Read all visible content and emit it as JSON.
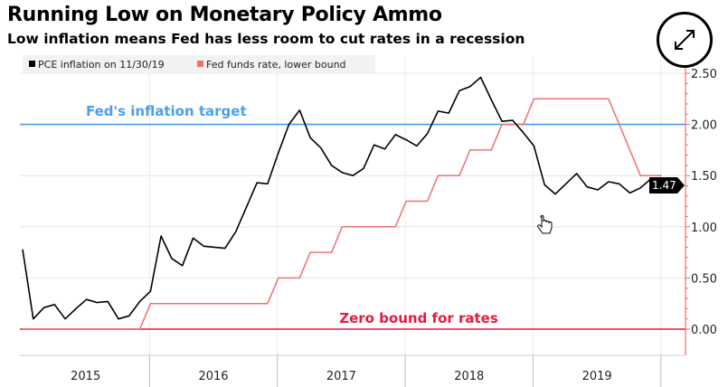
{
  "title": "Running Low on Monetary Policy Ammo",
  "subtitle": "Low inflation means Fed has less room to cut rates in a recession",
  "expand_icon": "expand-arrows-icon",
  "chart_data": {
    "type": "line",
    "title": "Running Low on Monetary Policy Ammo",
    "subtitle": "Low inflation means Fed has less room to cut rates in a recession",
    "x_tick_labels": [
      "2015",
      "2016",
      "2017",
      "2018",
      "2019"
    ],
    "y_ticks": [
      "0.00",
      "0.50",
      "1.00",
      "1.50",
      "2.00",
      "2.50"
    ],
    "ylim": [
      0,
      2.5
    ],
    "y_axis_side": "right",
    "grid": true,
    "legend_placement": "top-left",
    "series": [
      {
        "name": "PCE inflation on 11/30/19",
        "color": "#000000",
        "x": [
          "2014-12",
          "2015-01",
          "2015-02",
          "2015-03",
          "2015-04",
          "2015-05",
          "2015-06",
          "2015-07",
          "2015-08",
          "2015-09",
          "2015-10",
          "2015-11",
          "2015-12",
          "2016-01",
          "2016-02",
          "2016-03",
          "2016-04",
          "2016-05",
          "2016-06",
          "2016-07",
          "2016-08",
          "2016-09",
          "2016-10",
          "2016-11",
          "2016-12",
          "2017-01",
          "2017-02",
          "2017-03",
          "2017-04",
          "2017-05",
          "2017-06",
          "2017-07",
          "2017-08",
          "2017-09",
          "2017-10",
          "2017-11",
          "2017-12",
          "2018-01",
          "2018-02",
          "2018-03",
          "2018-04",
          "2018-05",
          "2018-06",
          "2018-07",
          "2018-08",
          "2018-09",
          "2018-10",
          "2018-11",
          "2018-12",
          "2019-01",
          "2019-02",
          "2019-03",
          "2019-04",
          "2019-05",
          "2019-06",
          "2019-07",
          "2019-08",
          "2019-09",
          "2019-10",
          "2019-11"
        ],
        "values": [
          0.78,
          0.1,
          0.21,
          0.24,
          0.1,
          0.2,
          0.29,
          0.26,
          0.27,
          0.1,
          0.13,
          0.27,
          0.37,
          0.91,
          0.69,
          0.62,
          0.89,
          0.81,
          0.8,
          0.79,
          0.95,
          1.19,
          1.43,
          1.42,
          1.72,
          2.0,
          2.14,
          1.87,
          1.77,
          1.6,
          1.53,
          1.5,
          1.57,
          1.8,
          1.76,
          1.9,
          1.85,
          1.79,
          1.91,
          2.13,
          2.11,
          2.33,
          2.37,
          2.46,
          2.24,
          2.03,
          2.04,
          1.92,
          1.79,
          1.41,
          1.32,
          1.42,
          1.52,
          1.39,
          1.36,
          1.44,
          1.42,
          1.33,
          1.38,
          1.47
        ],
        "last_value_label": "1.47"
      },
      {
        "name": "Fed funds rate, lower bound",
        "color": "#f07070",
        "x": [
          "2014-12",
          "2015-01",
          "2015-02",
          "2015-03",
          "2015-04",
          "2015-05",
          "2015-06",
          "2015-07",
          "2015-08",
          "2015-09",
          "2015-10",
          "2015-11",
          "2015-12",
          "2016-01",
          "2016-02",
          "2016-03",
          "2016-04",
          "2016-05",
          "2016-06",
          "2016-07",
          "2016-08",
          "2016-09",
          "2016-10",
          "2016-11",
          "2016-12",
          "2017-01",
          "2017-02",
          "2017-03",
          "2017-04",
          "2017-05",
          "2017-06",
          "2017-07",
          "2017-08",
          "2017-09",
          "2017-10",
          "2017-11",
          "2017-12",
          "2018-01",
          "2018-02",
          "2018-03",
          "2018-04",
          "2018-05",
          "2018-06",
          "2018-07",
          "2018-08",
          "2018-09",
          "2018-10",
          "2018-11",
          "2018-12",
          "2019-01",
          "2019-02",
          "2019-03",
          "2019-04",
          "2019-05",
          "2019-06",
          "2019-07",
          "2019-08",
          "2019-09",
          "2019-10",
          "2019-11",
          "2019-12"
        ],
        "values": [
          0,
          0,
          0,
          0,
          0,
          0,
          0,
          0,
          0,
          0,
          0,
          0,
          0.25,
          0.25,
          0.25,
          0.25,
          0.25,
          0.25,
          0.25,
          0.25,
          0.25,
          0.25,
          0.25,
          0.25,
          0.5,
          0.5,
          0.5,
          0.75,
          0.75,
          0.75,
          1,
          1,
          1,
          1,
          1,
          1,
          1.25,
          1.25,
          1.25,
          1.5,
          1.5,
          1.5,
          1.75,
          1.75,
          1.75,
          2,
          2,
          2,
          2.25,
          2.25,
          2.25,
          2.25,
          2.25,
          2.25,
          2.25,
          2.25,
          2,
          1.75,
          1.5,
          1.5,
          1.5
        ]
      }
    ],
    "reference_lines": [
      {
        "label": "Fed's inflation target",
        "value": 2.0,
        "color": "#4a9ff0"
      },
      {
        "label": "Zero bound for rates",
        "value": 0.0,
        "color": "#e8193c"
      }
    ],
    "axis_color": "#f07070"
  }
}
